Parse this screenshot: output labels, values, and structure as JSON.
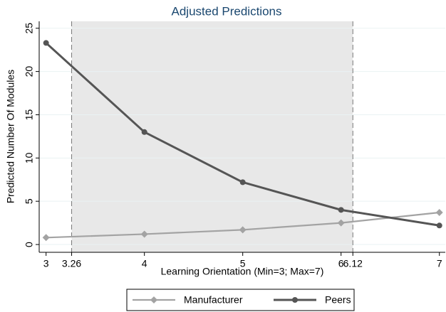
{
  "chart_data": {
    "type": "line",
    "title": "Adjusted Predictions",
    "x_label": "Learning Orientation (Min=3; Max=7)",
    "y_label": "Predicted Number Of Modules",
    "x": [
      3,
      4,
      5,
      6,
      7
    ],
    "series": [
      {
        "name": "Manufacturer",
        "color": "#a3a3a3",
        "marker": "diamond",
        "values": [
          0.8,
          1.2,
          1.7,
          2.5,
          3.7
        ]
      },
      {
        "name": "Peers",
        "color": "#555555",
        "marker": "circle",
        "values": [
          23.3,
          13.0,
          7.2,
          4.0,
          2.2
        ]
      }
    ],
    "shaded_range": [
      3.26,
      6.12
    ],
    "xlim": [
      2.93,
      7.06
    ],
    "xticks": [
      3,
      3.26,
      4,
      5,
      6,
      6.12,
      7
    ],
    "ylim": [
      -0.9,
      25.8
    ],
    "yticks": [
      0,
      5,
      10,
      15,
      20,
      25
    ],
    "grid": true,
    "legend": "bottom"
  }
}
